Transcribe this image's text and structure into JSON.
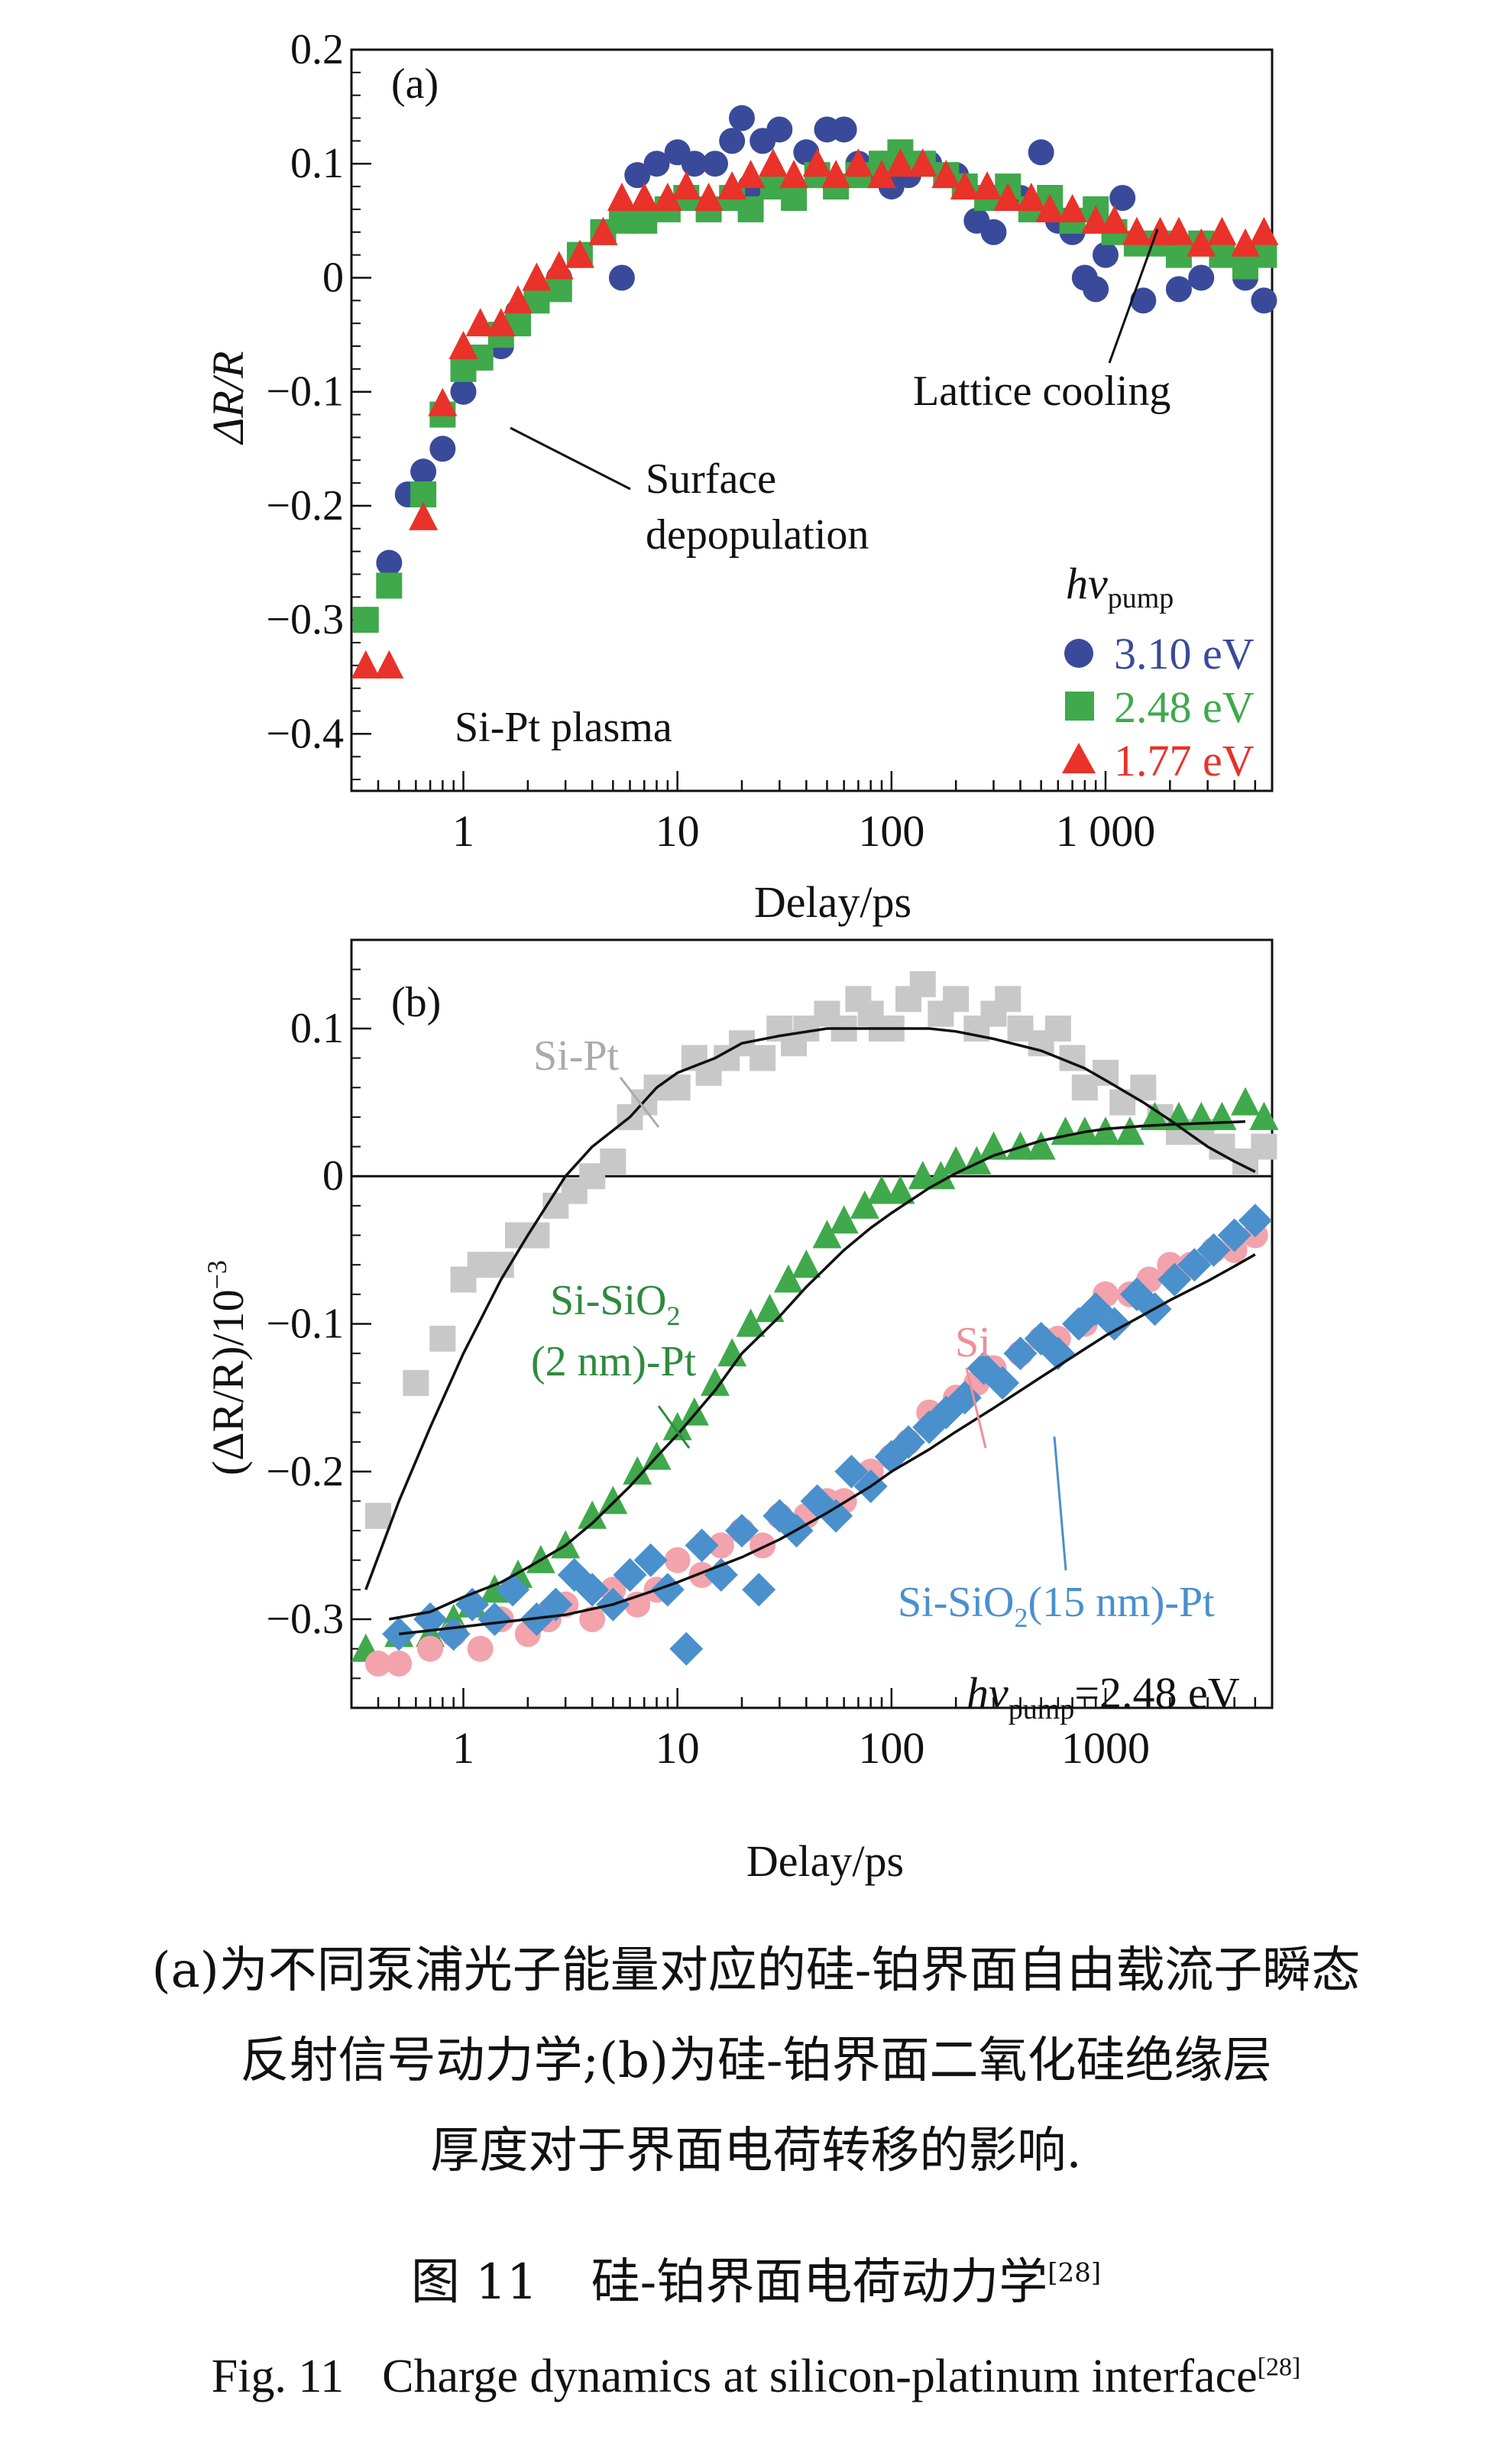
{
  "colors": {
    "blue": "#3a4a9a",
    "green": "#3fa94b",
    "red": "#e8322a",
    "gray": "#c8c8c8",
    "pink": "#f2a3ac",
    "lightblue": "#4a90cc",
    "darkgreen": "#2e8b3e",
    "fit": "#111111"
  },
  "chart_data": [
    {
      "type": "scatter",
      "panel_label": "(a)",
      "xlabel": "Delay/ps",
      "ylabel": "ΔR/R",
      "x_scale": "log",
      "xlim": [
        0.3,
        6000
      ],
      "ylim": [
        -0.45,
        0.2
      ],
      "x_ticks": [
        {
          "v": 1,
          "label": "1"
        },
        {
          "v": 10,
          "label": "10"
        },
        {
          "v": 100,
          "label": "100"
        },
        {
          "v": 1000,
          "label": "1 000"
        }
      ],
      "y_ticks": [
        {
          "v": 0.2,
          "label": "0.2"
        },
        {
          "v": 0.1,
          "label": "0.1"
        },
        {
          "v": 0,
          "label": "0"
        },
        {
          "v": -0.1,
          "label": "−0.1"
        },
        {
          "v": -0.2,
          "label": "−0.2"
        },
        {
          "v": -0.3,
          "label": "−0.3"
        },
        {
          "v": -0.4,
          "label": "−0.4"
        }
      ],
      "legend_title": "hv",
      "legend_title_sub": "pump",
      "legend_position": "bottom-right",
      "annotations": {
        "sample": "Si-Pt plasma",
        "lattice": "Lattice cooling",
        "surface_line1": "Surface",
        "surface_line2": "depopulation"
      },
      "series": [
        {
          "name": "3.10 eV",
          "marker": "circle",
          "color": "blue",
          "x": [
            0.35,
            0.45,
            0.55,
            0.65,
            0.8,
            1.0,
            1.2,
            1.5,
            1.8,
            2.2,
            2.8,
            3.5,
            4.5,
            5.5,
            6.5,
            8,
            10,
            12,
            15,
            18,
            20,
            22,
            25,
            30,
            35,
            40,
            50,
            60,
            70,
            80,
            90,
            100,
            120,
            150,
            200,
            250,
            300,
            400,
            500,
            600,
            700,
            800,
            900,
            1000,
            1200,
            1500,
            1800,
            2200,
            2800,
            3500,
            4500,
            5500
          ],
          "y": [
            -0.3,
            -0.25,
            -0.19,
            -0.17,
            -0.15,
            -0.1,
            -0.07,
            -0.06,
            -0.03,
            -0.02,
            0.0,
            0.02,
            0.04,
            0.0,
            0.09,
            0.1,
            0.11,
            0.1,
            0.1,
            0.12,
            0.14,
            0.08,
            0.12,
            0.13,
            0.07,
            0.11,
            0.13,
            0.13,
            0.1,
            0.09,
            0.1,
            0.08,
            0.09,
            0.1,
            0.09,
            0.05,
            0.04,
            0.07,
            0.11,
            0.05,
            0.04,
            0.0,
            -0.01,
            0.02,
            0.07,
            -0.02,
            0.03,
            -0.01,
            0.0,
            0.02,
            0.0,
            -0.02
          ]
        },
        {
          "name": "2.48 eV",
          "marker": "square",
          "color": "green",
          "x": [
            0.35,
            0.45,
            0.65,
            0.8,
            1.0,
            1.2,
            1.5,
            1.8,
            2.2,
            2.8,
            3.5,
            4.5,
            5.5,
            7,
            9,
            11,
            14,
            18,
            22,
            28,
            35,
            45,
            55,
            70,
            90,
            110,
            140,
            180,
            220,
            280,
            350,
            450,
            550,
            700,
            900,
            1100,
            1400,
            1800,
            2200,
            2800,
            3500,
            4500,
            5500
          ],
          "y": [
            -0.3,
            -0.27,
            -0.19,
            -0.12,
            -0.08,
            -0.07,
            -0.05,
            -0.04,
            -0.02,
            -0.01,
            0.02,
            0.04,
            0.05,
            0.05,
            0.06,
            0.07,
            0.06,
            0.07,
            0.06,
            0.08,
            0.07,
            0.09,
            0.08,
            0.09,
            0.1,
            0.11,
            0.1,
            0.09,
            0.08,
            0.07,
            0.08,
            0.06,
            0.07,
            0.05,
            0.06,
            0.04,
            0.03,
            0.03,
            0.02,
            0.03,
            0.02,
            0.01,
            0.02
          ]
        },
        {
          "name": "1.77 eV",
          "marker": "triangle",
          "color": "red",
          "x": [
            0.35,
            0.45,
            0.65,
            0.8,
            1.0,
            1.2,
            1.5,
            1.8,
            2.2,
            2.8,
            3.5,
            4.5,
            5.5,
            7,
            9,
            11,
            14,
            18,
            22,
            28,
            35,
            45,
            55,
            70,
            90,
            110,
            140,
            180,
            220,
            280,
            350,
            450,
            550,
            700,
            900,
            1100,
            1400,
            1800,
            2200,
            2800,
            3500,
            4500,
            5500
          ],
          "y": [
            -0.34,
            -0.34,
            -0.21,
            -0.11,
            -0.06,
            -0.04,
            -0.04,
            -0.02,
            0.0,
            0.01,
            0.02,
            0.04,
            0.07,
            0.07,
            0.07,
            0.08,
            0.07,
            0.08,
            0.09,
            0.1,
            0.09,
            0.1,
            0.09,
            0.1,
            0.09,
            0.1,
            0.1,
            0.09,
            0.08,
            0.08,
            0.07,
            0.07,
            0.06,
            0.06,
            0.05,
            0.05,
            0.04,
            0.04,
            0.04,
            0.03,
            0.04,
            0.03,
            0.04
          ]
        }
      ]
    },
    {
      "type": "scatter",
      "panel_label": "(b)",
      "xlabel": "Delay/ps",
      "ylabel": "(ΔR/R)/10",
      "ylabel_exp": "−3",
      "x_scale": "log",
      "xlim": [
        0.3,
        6000
      ],
      "ylim": [
        -0.36,
        0.16
      ],
      "x_ticks": [
        {
          "v": 1,
          "label": "1"
        },
        {
          "v": 10,
          "label": "10"
        },
        {
          "v": 100,
          "label": "100"
        },
        {
          "v": 1000,
          "label": "1000"
        }
      ],
      "y_ticks": [
        {
          "v": 0.1,
          "label": "0.1"
        },
        {
          "v": 0,
          "label": "0"
        },
        {
          "v": -0.1,
          "label": "−0.1"
        },
        {
          "v": -0.2,
          "label": "−0.2"
        },
        {
          "v": -0.3,
          "label": "−0.3"
        }
      ],
      "annotations": {
        "sipt": "Si-Pt",
        "sisio2_line1": "Si-SiO",
        "sisio2_sub": "2",
        "sisio2_line2": "(2 nm)-Pt",
        "si": "Si",
        "sisio15": "Si-SiO",
        "sisio15_sub": "2",
        "sisio15_rest": "(15 nm)-Pt",
        "hv": "hv",
        "hv_sub": "pump",
        "hv_value": "=2.48 eV"
      },
      "series": [
        {
          "name": "Si-Pt",
          "marker": "square",
          "color": "gray",
          "x": [
            0.4,
            0.6,
            0.8,
            1.0,
            1.2,
            1.5,
            1.8,
            2.2,
            2.7,
            3.3,
            4,
            5,
            6,
            7,
            8,
            10,
            12,
            14,
            17,
            20,
            25,
            30,
            35,
            40,
            50,
            60,
            70,
            80,
            90,
            100,
            120,
            140,
            170,
            200,
            250,
            300,
            350,
            400,
            500,
            600,
            700,
            800,
            1000,
            1200,
            1500,
            1800,
            2200,
            2800,
            3500,
            4500,
            5500
          ],
          "y": [
            -0.23,
            -0.14,
            -0.11,
            -0.07,
            -0.06,
            -0.06,
            -0.04,
            -0.04,
            -0.02,
            -0.01,
            0.0,
            0.01,
            0.04,
            0.05,
            0.06,
            0.06,
            0.08,
            0.07,
            0.08,
            0.09,
            0.08,
            0.1,
            0.09,
            0.1,
            0.11,
            0.1,
            0.12,
            0.11,
            0.1,
            0.1,
            0.12,
            0.13,
            0.11,
            0.12,
            0.1,
            0.11,
            0.12,
            0.1,
            0.09,
            0.1,
            0.08,
            0.06,
            0.07,
            0.05,
            0.06,
            0.04,
            0.03,
            0.03,
            0.02,
            0.01,
            0.02
          ]
        },
        {
          "name": "Si-SiO2 (2 nm)-Pt",
          "marker": "triangle",
          "color": "green",
          "x": [
            0.35,
            0.5,
            0.7,
            0.9,
            1.1,
            1.4,
            1.8,
            2.3,
            3,
            4,
            5,
            6.5,
            8,
            10,
            12,
            15,
            18,
            22,
            27,
            33,
            40,
            50,
            60,
            75,
            90,
            110,
            140,
            170,
            200,
            250,
            300,
            400,
            500,
            650,
            800,
            1000,
            1300,
            1700,
            2200,
            2800,
            3500,
            4500,
            5500
          ],
          "y": [
            -0.32,
            -0.31,
            -0.31,
            -0.3,
            -0.29,
            -0.28,
            -0.27,
            -0.26,
            -0.25,
            -0.23,
            -0.22,
            -0.2,
            -0.19,
            -0.17,
            -0.16,
            -0.14,
            -0.12,
            -0.1,
            -0.09,
            -0.07,
            -0.06,
            -0.04,
            -0.03,
            -0.02,
            -0.01,
            -0.01,
            0.0,
            0.0,
            0.01,
            0.01,
            0.02,
            0.02,
            0.02,
            0.03,
            0.03,
            0.03,
            0.03,
            0.04,
            0.04,
            0.04,
            0.04,
            0.05,
            0.04
          ]
        },
        {
          "name": "Si",
          "marker": "circle",
          "color": "pink",
          "x": [
            0.4,
            0.5,
            0.7,
            0.9,
            1.2,
            1.5,
            2,
            2.5,
            3,
            4,
            5,
            6.5,
            8,
            10,
            13,
            16,
            20,
            25,
            30,
            40,
            50,
            60,
            80,
            100,
            120,
            150,
            200,
            250,
            300,
            400,
            500,
            600,
            800,
            1000,
            1300,
            1600,
            2000,
            2500,
            3200,
            4000,
            5000
          ],
          "y": [
            -0.33,
            -0.33,
            -0.32,
            -0.31,
            -0.32,
            -0.3,
            -0.31,
            -0.3,
            -0.29,
            -0.3,
            -0.28,
            -0.29,
            -0.28,
            -0.26,
            -0.27,
            -0.25,
            -0.24,
            -0.25,
            -0.23,
            -0.23,
            -0.22,
            -0.22,
            -0.2,
            -0.19,
            -0.18,
            -0.16,
            -0.15,
            -0.14,
            -0.13,
            -0.12,
            -0.11,
            -0.11,
            -0.1,
            -0.08,
            -0.08,
            -0.07,
            -0.06,
            -0.06,
            -0.05,
            -0.05,
            -0.04
          ]
        },
        {
          "name": "Si-SiO2(15 nm)-Pt",
          "marker": "diamond",
          "color": "lightblue",
          "x": [
            0.5,
            0.7,
            0.9,
            1.1,
            1.4,
            1.7,
            2.2,
            2.7,
            3.3,
            4,
            5,
            6,
            7.5,
            9,
            11,
            13,
            16,
            20,
            24,
            30,
            36,
            45,
            55,
            65,
            80,
            100,
            120,
            150,
            180,
            220,
            270,
            330,
            400,
            500,
            600,
            750,
            900,
            1100,
            1400,
            1700,
            2100,
            2600,
            3200,
            4000,
            5000
          ],
          "y": [
            -0.31,
            -0.3,
            -0.31,
            -0.29,
            -0.3,
            -0.28,
            -0.3,
            -0.29,
            -0.27,
            -0.28,
            -0.29,
            -0.27,
            -0.26,
            -0.28,
            -0.32,
            -0.25,
            -0.27,
            -0.24,
            -0.28,
            -0.23,
            -0.24,
            -0.22,
            -0.23,
            -0.2,
            -0.21,
            -0.19,
            -0.18,
            -0.17,
            -0.16,
            -0.15,
            -0.13,
            -0.14,
            -0.12,
            -0.11,
            -0.12,
            -0.1,
            -0.09,
            -0.1,
            -0.08,
            -0.09,
            -0.07,
            -0.06,
            -0.05,
            -0.04,
            -0.03
          ]
        }
      ],
      "fits": [
        {
          "name": "Si-Pt fit",
          "x": [
            0.35,
            0.5,
            0.7,
            1,
            1.5,
            2,
            3,
            4,
            6,
            8,
            10,
            15,
            20,
            30,
            50,
            80,
            100,
            150,
            200,
            300,
            500,
            800,
            1000,
            1500,
            2000,
            3000,
            4000,
            5000
          ],
          "y": [
            -0.28,
            -0.22,
            -0.17,
            -0.12,
            -0.07,
            -0.04,
            0.0,
            0.02,
            0.04,
            0.06,
            0.07,
            0.08,
            0.09,
            0.095,
            0.1,
            0.1,
            0.1,
            0.1,
            0.098,
            0.093,
            0.085,
            0.073,
            0.065,
            0.05,
            0.038,
            0.02,
            0.01,
            0.003
          ]
        },
        {
          "name": "Si-SiO2 (2 nm)-Pt fit",
          "x": [
            0.45,
            0.7,
            1,
            1.5,
            2,
            3,
            4,
            6,
            8,
            10,
            15,
            20,
            30,
            40,
            60,
            80,
            100,
            150,
            200,
            300,
            500,
            800,
            1000,
            1500,
            2000,
            3000,
            4500
          ],
          "y": [
            -0.3,
            -0.295,
            -0.285,
            -0.275,
            -0.265,
            -0.25,
            -0.235,
            -0.21,
            -0.19,
            -0.175,
            -0.145,
            -0.12,
            -0.095,
            -0.075,
            -0.05,
            -0.035,
            -0.025,
            -0.008,
            0.002,
            0.014,
            0.024,
            0.03,
            0.032,
            0.034,
            0.035,
            0.036,
            0.037
          ]
        },
        {
          "name": "Si-SiO2(15 nm)-Pt fit",
          "x": [
            0.5,
            1,
            2,
            3,
            5,
            8,
            10,
            15,
            20,
            30,
            50,
            80,
            100,
            150,
            200,
            300,
            500,
            800,
            1000,
            1500,
            2000,
            3000,
            4000,
            5000
          ],
          "y": [
            -0.31,
            -0.305,
            -0.3,
            -0.297,
            -0.29,
            -0.28,
            -0.275,
            -0.265,
            -0.258,
            -0.246,
            -0.228,
            -0.21,
            -0.2,
            -0.185,
            -0.173,
            -0.157,
            -0.136,
            -0.117,
            -0.108,
            -0.094,
            -0.084,
            -0.071,
            -0.061,
            -0.053
          ]
        }
      ]
    }
  ],
  "caption": {
    "text_line1": "(a)为不同泵浦光子能量对应的硅-铂界面自由载流子瞬态",
    "text_line2": "反射信号动力学;(b)为硅-铂界面二氧化硅绝缘层",
    "text_line3": "厚度对于界面电荷转移的影响.",
    "fig_label_zh": "图 11",
    "fig_title_zh": "硅-铂界面电荷动力学",
    "ref": "[28]",
    "fig_label_en": "Fig. 11",
    "fig_title_en": "Charge dynamics at silicon-platinum interface"
  }
}
